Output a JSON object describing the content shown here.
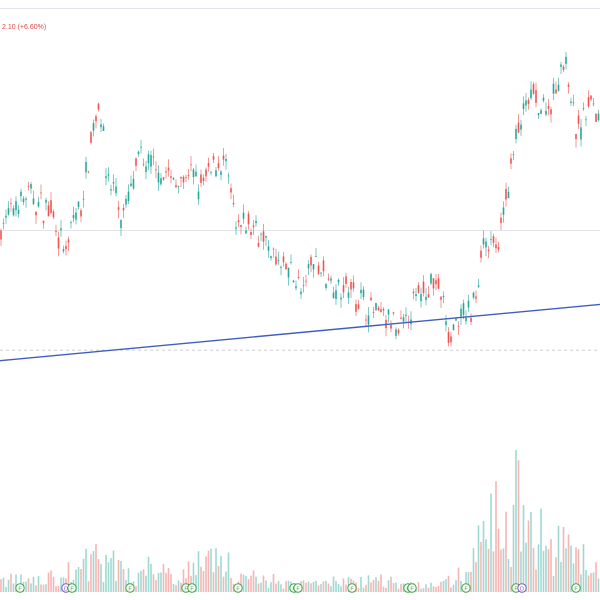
{
  "header": {
    "change_text": "2.10 (+6.60%)"
  },
  "colors": {
    "up": "#26a69a",
    "down": "#ef5350",
    "trendline": "#3f5fbf",
    "up_volume": "#9fd8d1",
    "down_volume": "#f5b5b3"
  },
  "chart_data": {
    "type": "candlestick",
    "title": "",
    "xlabel": "",
    "ylabel": "",
    "ylim": [
      0,
      100
    ],
    "grid": false,
    "legend": "none",
    "price_path": [
      [
        0,
        52
      ],
      [
        10,
        55
      ],
      [
        20,
        60
      ],
      [
        30,
        61
      ],
      [
        40,
        58
      ],
      [
        52,
        57
      ],
      [
        60,
        48
      ],
      [
        66,
        44
      ],
      [
        74,
        55
      ],
      [
        82,
        58
      ],
      [
        88,
        71
      ],
      [
        94,
        82
      ],
      [
        99,
        88
      ],
      [
        103,
        80
      ],
      [
        106,
        68
      ],
      [
        110,
        64
      ],
      [
        116,
        62
      ],
      [
        120,
        54
      ],
      [
        126,
        57
      ],
      [
        132,
        64
      ],
      [
        140,
        72
      ],
      [
        150,
        69
      ],
      [
        160,
        68
      ],
      [
        170,
        66
      ],
      [
        180,
        65
      ],
      [
        190,
        67
      ],
      [
        200,
        63
      ],
      [
        210,
        68
      ],
      [
        218,
        71
      ],
      [
        226,
        69
      ],
      [
        232,
        60
      ],
      [
        236,
        50
      ],
      [
        246,
        53
      ],
      [
        256,
        52
      ],
      [
        266,
        48
      ],
      [
        276,
        42
      ],
      [
        286,
        40
      ],
      [
        296,
        38
      ],
      [
        302,
        32
      ],
      [
        312,
        43
      ],
      [
        322,
        40
      ],
      [
        332,
        36
      ],
      [
        342,
        35
      ],
      [
        352,
        34
      ],
      [
        362,
        31
      ],
      [
        372,
        28
      ],
      [
        382,
        27
      ],
      [
        392,
        25
      ],
      [
        398,
        21
      ],
      [
        408,
        27
      ],
      [
        418,
        32
      ],
      [
        428,
        36
      ],
      [
        436,
        36
      ],
      [
        444,
        30
      ],
      [
        448,
        19
      ],
      [
        452,
        23
      ],
      [
        462,
        26
      ],
      [
        472,
        28
      ],
      [
        478,
        36
      ],
      [
        482,
        49
      ],
      [
        490,
        47
      ],
      [
        496,
        45
      ],
      [
        500,
        49
      ],
      [
        506,
        60
      ],
      [
        512,
        71
      ],
      [
        518,
        79
      ],
      [
        524,
        84
      ],
      [
        530,
        89
      ],
      [
        536,
        88
      ],
      [
        542,
        85
      ],
      [
        548,
        86
      ],
      [
        556,
        91
      ],
      [
        562,
        100
      ],
      [
        566,
        97
      ],
      [
        570,
        91
      ],
      [
        574,
        82
      ],
      [
        580,
        79
      ],
      [
        586,
        86
      ],
      [
        592,
        88
      ],
      [
        600,
        82
      ]
    ],
    "volume_path": [
      [
        0,
        12
      ],
      [
        40,
        10
      ],
      [
        70,
        18
      ],
      [
        90,
        30
      ],
      [
        110,
        26
      ],
      [
        140,
        14
      ],
      [
        150,
        31
      ],
      [
        180,
        14
      ],
      [
        214,
        38
      ],
      [
        240,
        15
      ],
      [
        300,
        7
      ],
      [
        340,
        10
      ],
      [
        380,
        12
      ],
      [
        400,
        7
      ],
      [
        440,
        6
      ],
      [
        470,
        20
      ],
      [
        480,
        50
      ],
      [
        500,
        70
      ],
      [
        510,
        60
      ],
      [
        516,
        100
      ],
      [
        530,
        55
      ],
      [
        560,
        42
      ],
      [
        575,
        30
      ],
      [
        600,
        26
      ]
    ],
    "trendline": {
      "start": [
        0,
        14
      ],
      "end": [
        600,
        30
      ]
    },
    "reference_level": 51,
    "support_level": 17,
    "event_markers": [
      {
        "x": 20,
        "label": "F"
      },
      {
        "x": 66,
        "label": "D"
      },
      {
        "x": 72,
        "label": "F"
      },
      {
        "x": 130,
        "label": "F"
      },
      {
        "x": 186,
        "label": "F"
      },
      {
        "x": 192,
        "label": "F"
      },
      {
        "x": 238,
        "label": "F"
      },
      {
        "x": 294,
        "label": "F"
      },
      {
        "x": 298,
        "label": "F"
      },
      {
        "x": 352,
        "label": "F"
      },
      {
        "x": 408,
        "label": "F"
      },
      {
        "x": 412,
        "label": "F"
      },
      {
        "x": 466,
        "label": "F"
      },
      {
        "x": 516,
        "label": "F"
      },
      {
        "x": 522,
        "label": "D"
      },
      {
        "x": 576,
        "label": "F"
      }
    ]
  }
}
